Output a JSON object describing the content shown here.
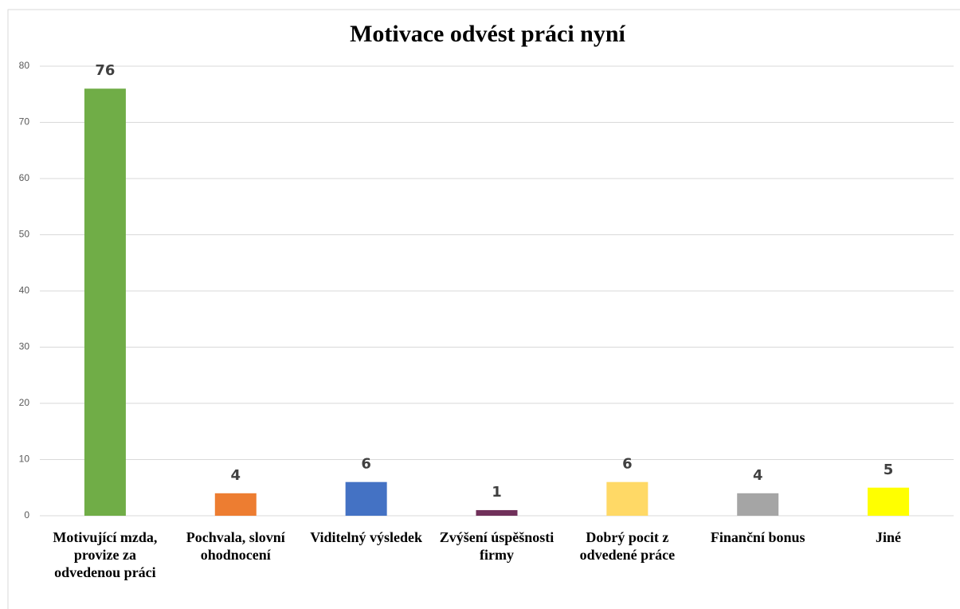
{
  "chart_data": {
    "type": "bar",
    "title": "Motivace odvést práci nyní",
    "categories": [
      "Motivující mzda, provize za odvedenou práci",
      "Pochvala, slovní ohodnocení",
      "Viditelný výsledek",
      "Zvýšení úspěšnosti firmy",
      "Dobrý pocit z odvedené práce",
      "Finanční bonus",
      "Jiné"
    ],
    "values": [
      76,
      4,
      6,
      1,
      6,
      4,
      5
    ],
    "colors": [
      "#70ad47",
      "#ed7d31",
      "#4472c4",
      "#70305a",
      "#ffd966",
      "#a5a5a5",
      "#ffff00"
    ],
    "ylim": [
      0,
      80
    ],
    "yticks": [
      0,
      10,
      20,
      30,
      40,
      50,
      60,
      70,
      80
    ],
    "grid": true
  }
}
